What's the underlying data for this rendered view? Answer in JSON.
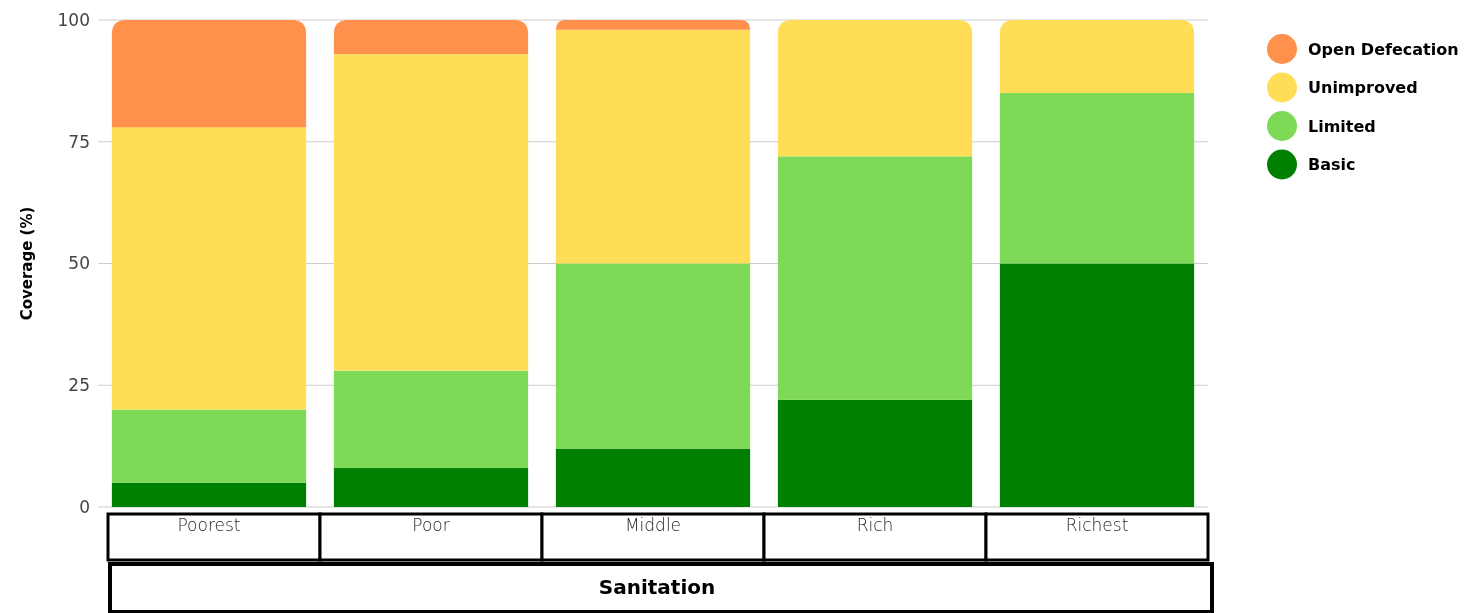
{
  "chart_data": {
    "type": "bar",
    "stacked": true,
    "xlabel": "Sanitation",
    "ylabel": "Coverage (%)",
    "categories": [
      "Poorest",
      "Poor",
      "Middle",
      "Rich",
      "Richest"
    ],
    "series": [
      {
        "name": "Basic",
        "color": "#008000",
        "values": [
          5,
          8,
          12,
          22,
          50
        ]
      },
      {
        "name": "Limited",
        "color": "#7ed957",
        "values": [
          15,
          20,
          38,
          50,
          35
        ]
      },
      {
        "name": "Unimproved",
        "color": "#ffdd57",
        "values": [
          58,
          65,
          48,
          28,
          15
        ]
      },
      {
        "name": "Open Defecation",
        "color": "#ff914d",
        "values": [
          22,
          7,
          2,
          0,
          0
        ]
      }
    ],
    "ylim": [
      0,
      100
    ],
    "yticks": [
      0,
      25,
      50,
      75,
      100
    ],
    "grid": "y",
    "legend": "top right"
  }
}
